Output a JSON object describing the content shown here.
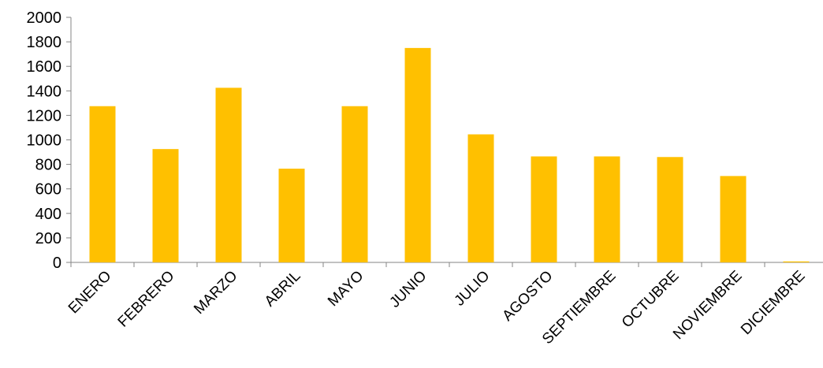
{
  "chart_data": {
    "type": "bar",
    "title": "",
    "xlabel": "",
    "ylabel": "",
    "ylim": [
      0,
      2000
    ],
    "yticks": [
      0,
      200,
      400,
      600,
      800,
      1000,
      1200,
      1400,
      1600,
      1800,
      2000
    ],
    "grid": false,
    "legend": "none",
    "bar_color": "#FFC000",
    "categories": [
      "ENERO",
      "FEBRERO",
      "MARZO",
      "ABRIL",
      "MAYO",
      "JUNIO",
      "JULIO",
      "AGOSTO",
      "SEPTIEMBRE",
      "OCTUBRE",
      "NOVIEMBRE",
      "DICIEMBRE"
    ],
    "values": [
      1275,
      925,
      1425,
      765,
      1275,
      1750,
      1045,
      865,
      865,
      860,
      705,
      8
    ]
  }
}
